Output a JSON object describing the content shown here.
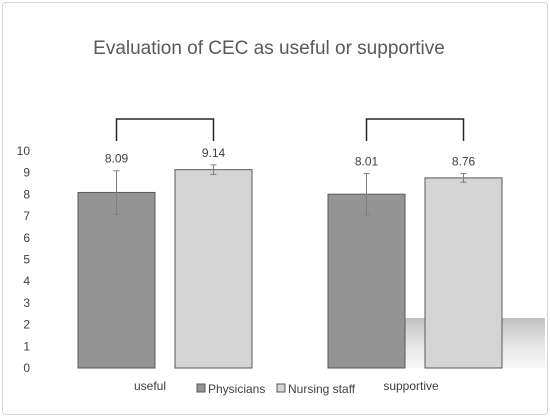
{
  "chart_data": {
    "type": "bar",
    "title": "Evaluation of CEC as useful or supportive",
    "categories": [
      "useful",
      "supportive"
    ],
    "series": [
      {
        "name": "Physicians",
        "values": [
          8.09,
          8.01
        ],
        "error": [
          1.0,
          0.95
        ],
        "color": "#949494"
      },
      {
        "name": "Nursing staff",
        "values": [
          9.14,
          8.76
        ],
        "error": [
          0.22,
          0.2
        ],
        "color": "#d4d4d4"
      }
    ],
    "data_labels": [
      "8.09",
      "9.14",
      "8.01",
      "8.76"
    ],
    "ylim": [
      0,
      10
    ],
    "yticks": [
      "0",
      "1",
      "2",
      "3",
      "4",
      "5",
      "6",
      "7",
      "8",
      "9",
      "10"
    ],
    "xlabel": "",
    "ylabel": "",
    "grid": false,
    "legend_position": "bottom",
    "significance_brackets": true,
    "colors": {
      "bar_edge": "#595959",
      "text": "#404040",
      "title": "#595959"
    }
  }
}
